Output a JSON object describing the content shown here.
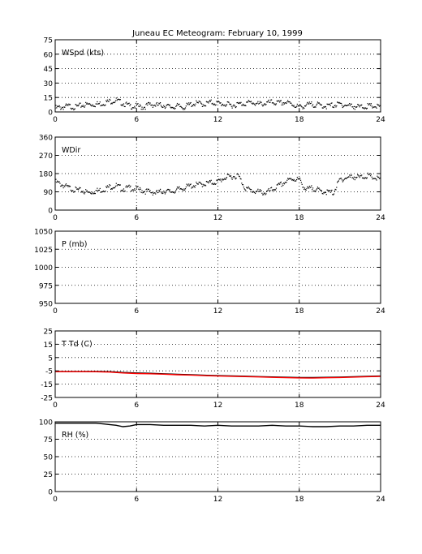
{
  "title": "Juneau EC Meteogram:  February 10, 1999",
  "chart_data": [
    {
      "type": "scatter",
      "label": "WSpd (kts)",
      "xlim": [
        0,
        24
      ],
      "xticks": [
        0,
        6,
        12,
        18,
        24
      ],
      "ylim": [
        0,
        75
      ],
      "yticks": [
        0,
        15,
        30,
        45,
        60,
        75
      ],
      "grid": true,
      "series": [
        {
          "color": "#000000",
          "style": "dots",
          "x": [
            0,
            0.5,
            1,
            1.5,
            2,
            2.5,
            3,
            3.5,
            4,
            4.5,
            5,
            5.5,
            6,
            6.5,
            7,
            7.5,
            8,
            8.5,
            9,
            9.5,
            10,
            10.5,
            11,
            11.5,
            12,
            12.5,
            13,
            13.5,
            14,
            14.5,
            15,
            15.5,
            16,
            16.5,
            17,
            17.5,
            18,
            18.5,
            19,
            19.5,
            20,
            20.5,
            21,
            21.5,
            22,
            22.5,
            23,
            23.5,
            24
          ],
          "y": [
            4,
            5,
            6,
            5,
            7,
            8,
            8,
            9,
            11,
            12,
            9,
            6,
            6,
            5,
            8,
            7,
            7,
            5,
            6,
            5,
            8,
            9,
            8,
            10,
            9,
            8,
            7,
            8,
            9,
            10,
            8,
            9,
            10,
            9,
            10,
            8,
            5,
            7,
            8,
            7,
            6,
            7,
            8,
            7,
            6,
            5,
            6,
            6,
            5
          ]
        }
      ]
    },
    {
      "type": "scatter",
      "label": "WDir",
      "xlim": [
        0,
        24
      ],
      "xticks": [
        0,
        6,
        12,
        18,
        24
      ],
      "ylim": [
        0,
        360
      ],
      "yticks": [
        0,
        90,
        180,
        270,
        360
      ],
      "grid": true,
      "series": [
        {
          "color": "#000000",
          "style": "dots",
          "x": [
            0,
            0.5,
            1,
            1.5,
            2,
            2.5,
            3,
            3.5,
            4,
            4.5,
            5,
            5.5,
            6,
            6.5,
            7,
            7.5,
            8,
            8.5,
            9,
            9.5,
            10,
            10.5,
            11,
            11.5,
            12,
            12.5,
            13,
            13.5,
            14,
            14.5,
            15,
            15.5,
            16,
            16.5,
            17,
            17.5,
            18,
            18.5,
            19,
            19.5,
            20,
            20.5,
            21,
            21.5,
            22,
            22.5,
            23,
            23.5,
            24
          ],
          "y": [
            140,
            125,
            110,
            100,
            95,
            85,
            95,
            100,
            115,
            120,
            105,
            110,
            105,
            95,
            90,
            85,
            95,
            90,
            100,
            110,
            120,
            125,
            130,
            135,
            140,
            160,
            165,
            170,
            110,
            95,
            90,
            85,
            100,
            120,
            140,
            155,
            150,
            100,
            110,
            95,
            90,
            85,
            150,
            160,
            165,
            160,
            170,
            160,
            150
          ]
        }
      ]
    },
    {
      "type": "line",
      "label": "P (mb)",
      "xlim": [
        0,
        24
      ],
      "xticks": [
        0,
        6,
        12,
        18,
        24
      ],
      "ylim": [
        950,
        1050
      ],
      "yticks": [
        950,
        975,
        1000,
        1025,
        1050
      ],
      "grid": true,
      "series": []
    },
    {
      "type": "line",
      "label": "T Td (C)",
      "xlim": [
        0,
        24
      ],
      "xticks": [
        0,
        6,
        12,
        18,
        24
      ],
      "ylim": [
        -25,
        25
      ],
      "yticks": [
        -25,
        -15,
        -5,
        5,
        15,
        25
      ],
      "grid": true,
      "series": [
        {
          "color": "#000000",
          "style": "line",
          "x": [
            0,
            1,
            2,
            3,
            4,
            5,
            6,
            7,
            8,
            9,
            10,
            11,
            12,
            13,
            14,
            15,
            16,
            17,
            18,
            19,
            20,
            21,
            22,
            23,
            24
          ],
          "y": [
            -5.4,
            -5.4,
            -5.4,
            -5.5,
            -5.6,
            -6.2,
            -6.6,
            -6.8,
            -7.2,
            -7.6,
            -7.9,
            -8.3,
            -8.6,
            -8.8,
            -9.0,
            -9.3,
            -9.6,
            -9.8,
            -10.0,
            -10.0,
            -9.9,
            -9.7,
            -9.4,
            -9.1,
            -8.9
          ]
        },
        {
          "color": "#ff0000",
          "style": "line",
          "x": [
            0,
            1,
            2,
            3,
            4,
            5,
            6,
            7,
            8,
            9,
            10,
            11,
            12,
            13,
            14,
            15,
            16,
            17,
            18,
            19,
            20,
            21,
            22,
            23,
            24
          ],
          "y": [
            -5.6,
            -5.6,
            -5.6,
            -5.7,
            -5.9,
            -6.6,
            -7.0,
            -7.2,
            -7.5,
            -7.9,
            -8.2,
            -8.6,
            -8.9,
            -9.1,
            -9.3,
            -9.6,
            -9.9,
            -10.1,
            -10.3,
            -10.4,
            -10.2,
            -10.0,
            -9.7,
            -9.4,
            -9.2
          ]
        }
      ]
    },
    {
      "type": "line",
      "label": "RH (%)",
      "xlim": [
        0,
        24
      ],
      "xticks": [
        0,
        6,
        12,
        18,
        24
      ],
      "ylim": [
        0,
        100
      ],
      "yticks": [
        0,
        25,
        50,
        75,
        100
      ],
      "grid": true,
      "series": [
        {
          "color": "#000000",
          "style": "line",
          "x": [
            0,
            1,
            2,
            3,
            4,
            4.5,
            5,
            5.5,
            6,
            7,
            8,
            9,
            10,
            11,
            12,
            13,
            14,
            15,
            16,
            17,
            18,
            19,
            20,
            21,
            22,
            23,
            24
          ],
          "y": [
            98,
            98,
            98,
            98,
            96,
            95,
            93,
            94,
            96,
            96,
            95,
            95,
            95,
            94,
            95,
            94,
            94,
            94,
            95,
            94,
            94,
            93,
            93,
            94,
            94,
            95,
            95
          ]
        }
      ]
    }
  ]
}
